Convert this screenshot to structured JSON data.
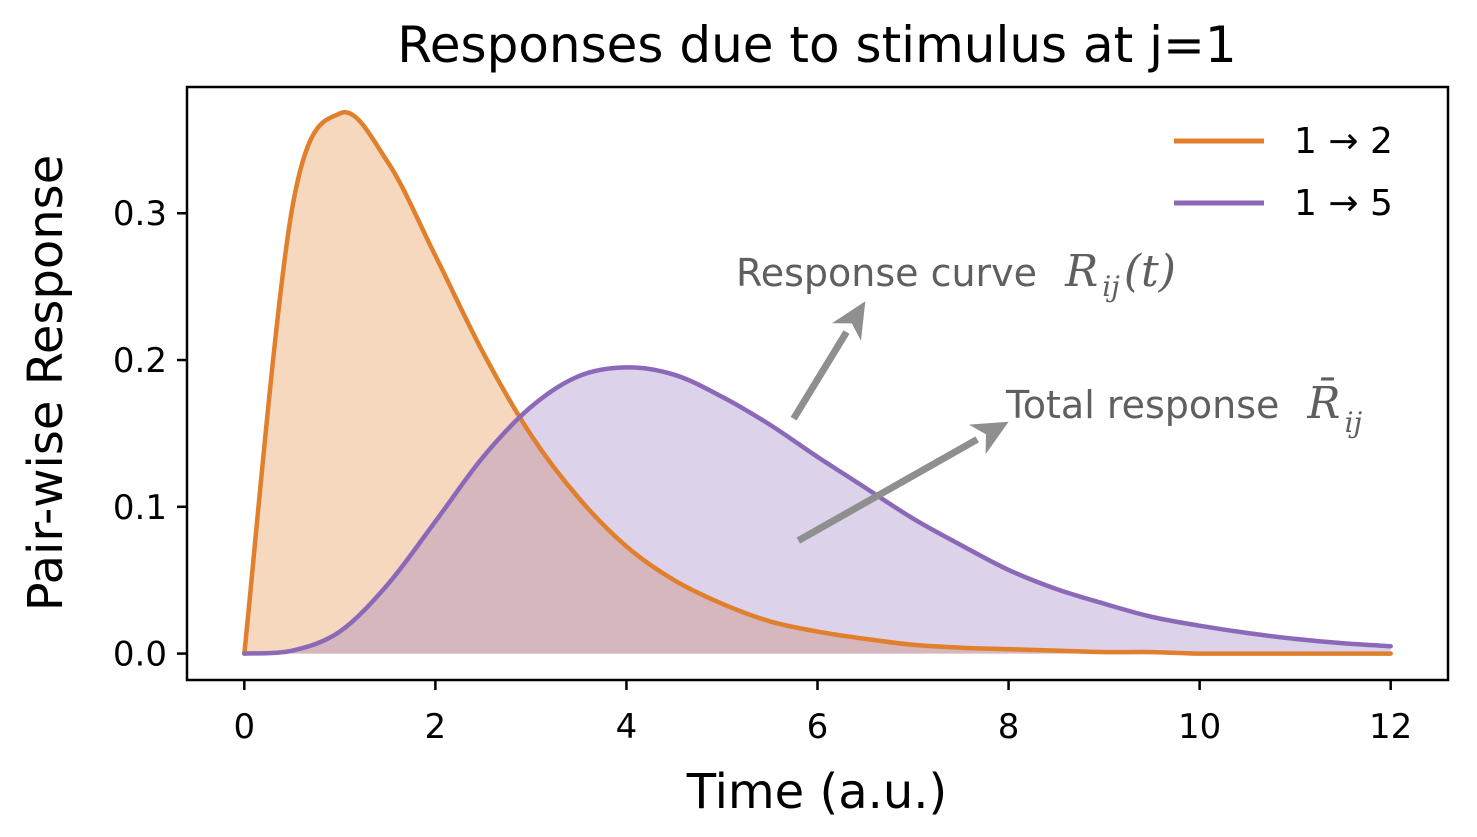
{
  "chart_data": {
    "type": "area",
    "title": "Responses due to stimulus at j=1",
    "xlabel": "Time (a.u.)",
    "ylabel": "Pair-wise Response",
    "xlim": [
      -0.6,
      12.6
    ],
    "ylim": [
      -0.018,
      0.386
    ],
    "xticks": [
      0,
      2,
      4,
      6,
      8,
      10,
      12
    ],
    "xtick_labels": [
      "0",
      "2",
      "4",
      "6",
      "8",
      "10",
      "12"
    ],
    "yticks": [
      0.0,
      0.1,
      0.2,
      0.3
    ],
    "ytick_labels": [
      "0.0",
      "0.1",
      "0.2",
      "0.3"
    ],
    "grid": false,
    "legend_position": "upper right",
    "x": [
      0,
      0.5,
      1,
      1.5,
      2,
      2.5,
      3,
      3.5,
      4,
      4.5,
      5,
      5.5,
      6,
      6.5,
      7,
      7.5,
      8,
      8.5,
      9,
      9.5,
      10,
      10.5,
      11,
      11.5,
      12
    ],
    "series": [
      {
        "name": "1 → 2",
        "color": "#e07f2c",
        "fill": "#f6d8bb",
        "values": [
          0.0,
          0.303,
          0.368,
          0.335,
          0.271,
          0.205,
          0.149,
          0.106,
          0.073,
          0.05,
          0.034,
          0.022,
          0.015,
          0.01,
          0.006,
          0.004,
          0.003,
          0.002,
          0.001,
          0.001,
          0.0,
          0.0,
          0.0,
          0.0,
          0.0
        ]
      },
      {
        "name": "1 → 5",
        "color": "#8b69b8",
        "fill": "#dcd2ec",
        "values": [
          0.0,
          0.002,
          0.015,
          0.047,
          0.09,
          0.134,
          0.168,
          0.189,
          0.195,
          0.19,
          0.175,
          0.156,
          0.134,
          0.113,
          0.092,
          0.074,
          0.057,
          0.044,
          0.034,
          0.025,
          0.019,
          0.014,
          0.01,
          0.007,
          0.005
        ]
      }
    ],
    "annotations": [
      {
        "text": "Response curve",
        "math": "R",
        "math_sub": "ij",
        "math_suffix": "(t)",
        "arrow_from": [
          5.75,
          0.16
        ],
        "arrow_to": [
          6.5,
          0.24
        ]
      },
      {
        "text": "Total response",
        "math": "R̄",
        "math_sub": "ij",
        "math_suffix": "",
        "arrow_from": [
          5.8,
          0.077
        ],
        "arrow_to": [
          8.0,
          0.158
        ]
      }
    ],
    "annotation_color": "#8f8f8f"
  }
}
